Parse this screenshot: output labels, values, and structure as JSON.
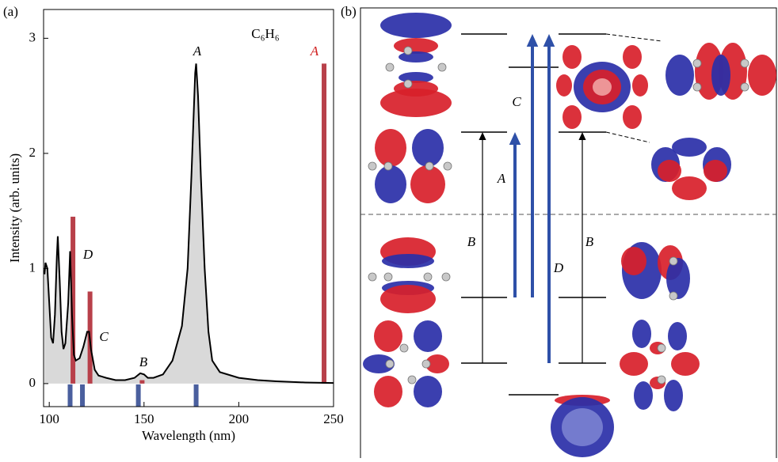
{
  "chart_data": {
    "type": "line",
    "xlabel": "Wavelength (nm)",
    "ylabel": "Intensity (arb. units)",
    "x": [
      97.5,
      98,
      99,
      100,
      101,
      102,
      103,
      104,
      104.5,
      105.5,
      106.5,
      107.5,
      108.5,
      110,
      111,
      112,
      113,
      114,
      116,
      118,
      120,
      121,
      122,
      124,
      126,
      130,
      135,
      140,
      145,
      148,
      150,
      152,
      155,
      160,
      165,
      170,
      173,
      175,
      177,
      177.5,
      178.5,
      180,
      182,
      184,
      186,
      190,
      200,
      210,
      220,
      235,
      250
    ],
    "values": [
      0.95,
      1.05,
      1.0,
      0.7,
      0.4,
      0.35,
      0.6,
      1.1,
      1.28,
      0.9,
      0.45,
      0.3,
      0.35,
      0.7,
      1.15,
      0.6,
      0.25,
      0.2,
      0.22,
      0.32,
      0.45,
      0.45,
      0.3,
      0.12,
      0.07,
      0.05,
      0.03,
      0.03,
      0.05,
      0.09,
      0.08,
      0.05,
      0.05,
      0.08,
      0.2,
      0.5,
      1.0,
      1.8,
      2.7,
      2.78,
      2.5,
      1.8,
      1.0,
      0.45,
      0.2,
      0.1,
      0.05,
      0.03,
      0.02,
      0.01,
      0.005
    ],
    "color": "#000000",
    "fill_color": "#d9d9d9",
    "sticks": {
      "x": [
        112.5,
        121.5,
        149,
        245
      ],
      "values": [
        1.45,
        0.8,
        0.03,
        2.78
      ],
      "color": "#b8404a"
    },
    "dark_states": {
      "x": [
        111,
        117.5,
        147,
        177.5
      ],
      "color": "#4a5f9e"
    },
    "annotations": [
      {
        "text": "A",
        "color": "#000000"
      },
      {
        "text": "A",
        "color": "#d02020"
      },
      {
        "text": "B",
        "color": "#000000"
      },
      {
        "text": "C",
        "color": "#000000"
      },
      {
        "text": "D",
        "color": "#000000"
      },
      {
        "text": "C₆H₆",
        "color": "#000000"
      }
    ],
    "xlim": [
      97,
      250
    ],
    "ylim": [
      -0.2,
      3.25
    ],
    "xticks": [
      100,
      150,
      200,
      250
    ],
    "yticks": [
      0,
      1,
      2,
      3
    ],
    "grid": false
  },
  "panels": [
    "(a)",
    "(b)"
  ],
  "diagram": {
    "transition_labels": [
      "B",
      "B",
      "A",
      "C",
      "D"
    ]
  }
}
